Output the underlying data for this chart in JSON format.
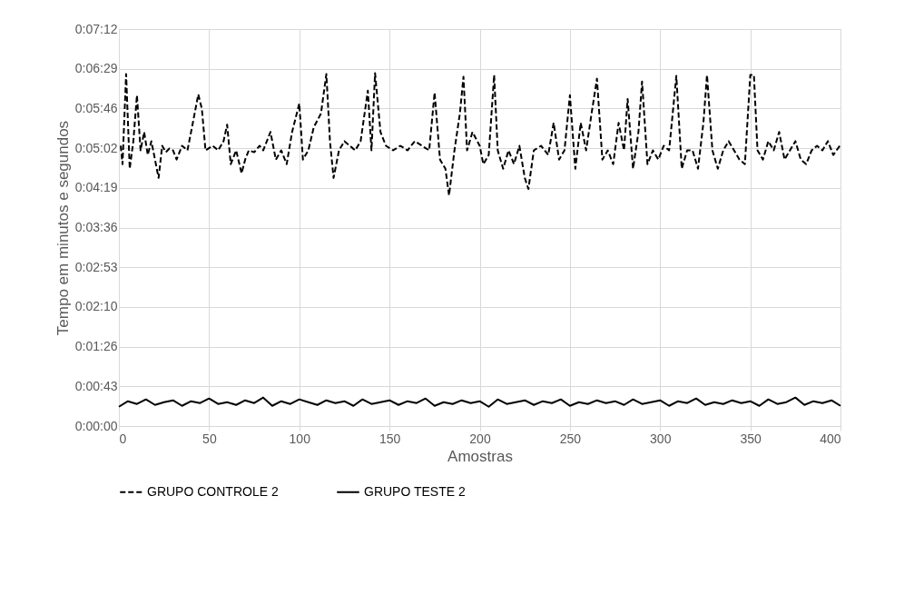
{
  "chart_data": {
    "type": "line",
    "xlabel": "Amostras",
    "ylabel": "Tempo em minutos e segundos",
    "xlim": [
      0,
      400
    ],
    "xticks": [
      0,
      50,
      100,
      150,
      200,
      250,
      300,
      350,
      400
    ],
    "ylim": [
      0,
      432
    ],
    "yticks": [
      {
        "value": 0,
        "label": "0:00:00"
      },
      {
        "value": 43.2,
        "label": "0:00:43"
      },
      {
        "value": 86.4,
        "label": "0:01:26"
      },
      {
        "value": 129.6,
        "label": "0:02:10"
      },
      {
        "value": 172.8,
        "label": "0:02:53"
      },
      {
        "value": 216,
        "label": "0:03:36"
      },
      {
        "value": 259.2,
        "label": "0:04:19"
      },
      {
        "value": 302.4,
        "label": "0:05:02"
      },
      {
        "value": 345.6,
        "label": "0:05:46"
      },
      {
        "value": 388.8,
        "label": "0:06:29"
      },
      {
        "value": 432,
        "label": "0:07:12"
      }
    ],
    "grid": true,
    "legend": "bottom",
    "marker": "none",
    "series": [
      {
        "name": "GRUPO CONTROLE 2",
        "color": "#000000",
        "line_style": "dashed",
        "x": [
          1,
          2,
          4,
          6,
          8,
          10,
          12,
          14,
          16,
          18,
          20,
          22,
          24,
          26,
          28,
          30,
          32,
          35,
          38,
          41,
          44,
          46,
          48,
          52,
          55,
          58,
          60,
          62,
          65,
          68,
          70,
          72,
          75,
          78,
          80,
          84,
          87,
          90,
          93,
          96,
          100,
          102,
          105,
          108,
          112,
          115,
          117,
          119,
          122,
          125,
          128,
          131,
          134,
          138,
          140,
          142,
          145,
          148,
          152,
          156,
          160,
          164,
          168,
          172,
          175,
          178,
          181,
          183,
          186,
          189,
          191,
          193,
          196,
          200,
          202,
          205,
          208,
          210,
          213,
          216,
          219,
          222,
          225,
          227,
          230,
          234,
          238,
          241,
          244,
          247,
          250,
          253,
          256,
          259,
          262,
          265,
          268,
          271,
          274,
          277,
          280,
          282,
          285,
          288,
          290,
          293,
          296,
          299,
          302,
          305,
          309,
          312,
          315,
          318,
          321,
          324,
          326,
          329,
          332,
          335,
          338,
          341,
          344,
          347,
          350,
          352,
          354,
          357,
          360,
          363,
          366,
          369,
          372,
          375,
          378,
          381,
          384,
          387,
          390,
          393,
          396,
          400
        ],
        "values": [
          305,
          285,
          383,
          280,
          310,
          360,
          300,
          320,
          295,
          310,
          290,
          270,
          305,
          298,
          302,
          300,
          290,
          305,
          300,
          330,
          361,
          345,
          300,
          305,
          300,
          310,
          328,
          285,
          300,
          275,
          290,
          300,
          298,
          305,
          300,
          320,
          290,
          300,
          285,
          320,
          351,
          290,
          300,
          325,
          340,
          383,
          310,
          270,
          300,
          310,
          305,
          300,
          310,
          365,
          300,
          384,
          320,
          305,
          300,
          305,
          300,
          310,
          305,
          300,
          363,
          290,
          280,
          251,
          300,
          340,
          380,
          300,
          320,
          305,
          285,
          295,
          382,
          300,
          280,
          300,
          285,
          305,
          270,
          258,
          300,
          305,
          295,
          330,
          290,
          300,
          360,
          280,
          330,
          300,
          340,
          378,
          290,
          300,
          285,
          330,
          300,
          356,
          280,
          320,
          375,
          285,
          300,
          290,
          305,
          300,
          381,
          280,
          300,
          300,
          280,
          330,
          382,
          300,
          280,
          300,
          310,
          300,
          290,
          285,
          382,
          382,
          300,
          290,
          310,
          300,
          320,
          290,
          300,
          310,
          290,
          285,
          300,
          305,
          300,
          310,
          295,
          306
        ]
      },
      {
        "name": "GRUPO TESTE 2",
        "color": "#000000",
        "line_style": "solid",
        "x": [
          0,
          5,
          10,
          15,
          20,
          25,
          30,
          35,
          40,
          45,
          50,
          55,
          60,
          65,
          70,
          75,
          80,
          85,
          90,
          95,
          100,
          105,
          110,
          115,
          120,
          125,
          130,
          135,
          140,
          145,
          150,
          155,
          160,
          165,
          170,
          175,
          180,
          185,
          190,
          195,
          200,
          205,
          210,
          215,
          220,
          225,
          230,
          235,
          240,
          245,
          250,
          255,
          260,
          265,
          270,
          275,
          280,
          285,
          290,
          295,
          300,
          305,
          310,
          315,
          320,
          325,
          330,
          335,
          340,
          345,
          350,
          355,
          360,
          365,
          370,
          375,
          380,
          385,
          390,
          395,
          400
        ],
        "values": [
          21,
          27,
          24,
          29,
          23,
          26,
          28,
          22,
          27,
          25,
          30,
          24,
          26,
          23,
          28,
          25,
          31,
          22,
          27,
          24,
          29,
          26,
          23,
          28,
          25,
          27,
          22,
          29,
          24,
          26,
          28,
          23,
          27,
          25,
          30,
          22,
          26,
          24,
          28,
          25,
          27,
          21,
          29,
          24,
          26,
          28,
          23,
          27,
          25,
          29,
          22,
          26,
          24,
          28,
          25,
          27,
          23,
          29,
          24,
          26,
          28,
          22,
          27,
          25,
          30,
          23,
          26,
          24,
          28,
          25,
          27,
          22,
          29,
          24,
          26,
          31,
          23,
          27,
          25,
          28,
          22
        ]
      }
    ]
  }
}
